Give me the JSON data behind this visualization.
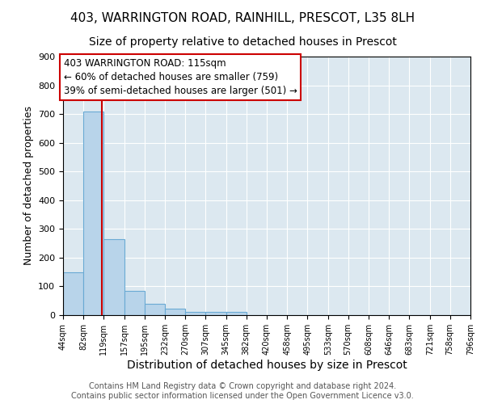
{
  "title1": "403, WARRINGTON ROAD, RAINHILL, PRESCOT, L35 8LH",
  "title2": "Size of property relative to detached houses in Prescot",
  "xlabel": "Distribution of detached houses by size in Prescot",
  "ylabel": "Number of detached properties",
  "bin_edges": [
    44,
    82,
    119,
    157,
    195,
    232,
    270,
    307,
    345,
    382,
    420,
    458,
    495,
    533,
    570,
    608,
    646,
    683,
    721,
    758,
    796
  ],
  "bar_heights": [
    150,
    710,
    265,
    83,
    38,
    23,
    10,
    10,
    10,
    0,
    0,
    0,
    0,
    0,
    0,
    0,
    0,
    0,
    0,
    0
  ],
  "bar_color": "#b8d4ea",
  "bar_edge_color": "#6aaad4",
  "vline_x": 115,
  "vline_color": "#cc0000",
  "ylim": [
    0,
    900
  ],
  "yticks": [
    0,
    100,
    200,
    300,
    400,
    500,
    600,
    700,
    800,
    900
  ],
  "annotation_text": "403 WARRINGTON ROAD: 115sqm\n← 60% of detached houses are smaller (759)\n39% of semi-detached houses are larger (501) →",
  "annotation_box_color": "#ffffff",
  "annotation_box_edge_color": "#cc0000",
  "bg_color": "#dce8f0",
  "footer_text": "Contains HM Land Registry data © Crown copyright and database right 2024.\nContains public sector information licensed under the Open Government Licence v3.0.",
  "tick_label_fontsize": 7,
  "title_fontsize1": 11,
  "title_fontsize2": 10,
  "footer_fontsize": 7
}
